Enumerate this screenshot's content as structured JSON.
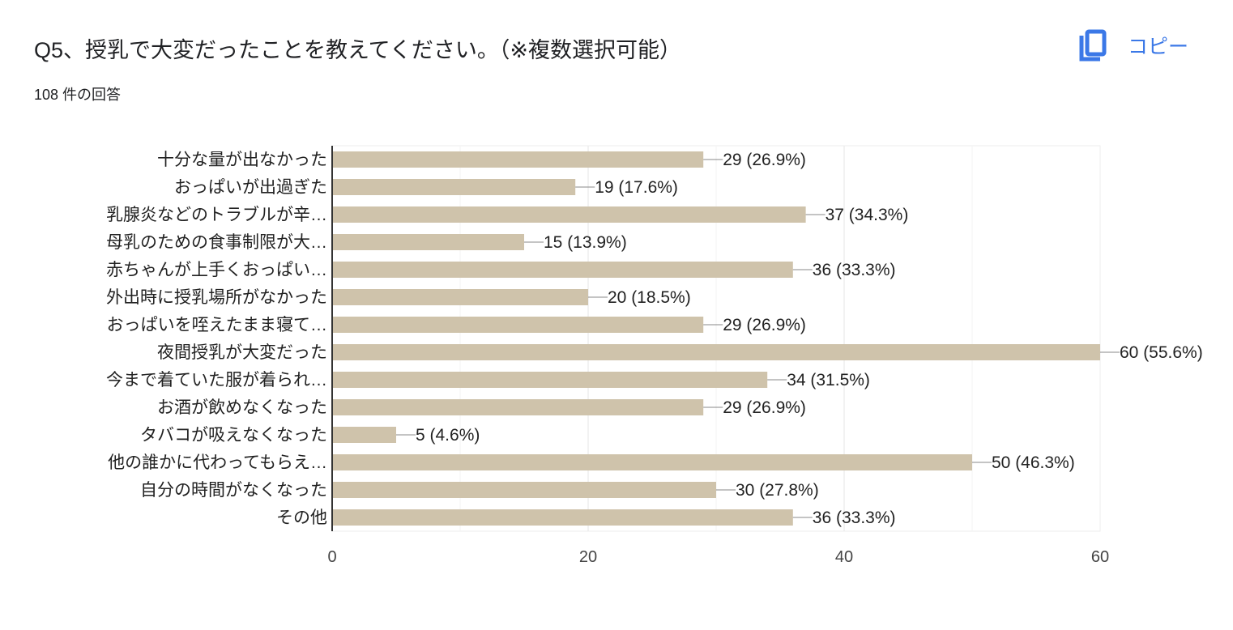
{
  "header": {
    "title": "Q5、授乳で大変だったことを教えてください。（※複数選択可能）",
    "response_count": "108 件の回答",
    "copy_label": "コピー"
  },
  "colors": {
    "bar": "#cfc3ab",
    "accent": "#3b78e7"
  },
  "chart_data": {
    "type": "bar",
    "orientation": "horizontal",
    "categories": [
      "十分な量が出なかった",
      "おっぱいが出過ぎた",
      "乳腺炎などのトラブルが辛…",
      "母乳のための食事制限が大…",
      "赤ちゃんが上手くおっぱい…",
      "外出時に授乳場所がなかった",
      "おっぱいを咥えたまま寝て…",
      "夜間授乳が大変だった",
      "今まで着ていた服が着られ…",
      "お酒が飲めなくなった",
      "タバコが吸えなくなった",
      "他の誰かに代わってもらえ…",
      "自分の時間がなくなった",
      "その他"
    ],
    "values": [
      29,
      19,
      37,
      15,
      36,
      20,
      29,
      60,
      34,
      29,
      5,
      50,
      30,
      36
    ],
    "labels": [
      "29 (26.9%)",
      "19 (17.6%)",
      "37 (34.3%)",
      "15 (13.9%)",
      "36 (33.3%)",
      "20 (18.5%)",
      "29 (26.9%)",
      "60 (55.6%)",
      "34 (31.5%)",
      "29 (26.9%)",
      "5 (4.6%)",
      "50 (46.3%)",
      "30 (27.8%)",
      "36 (33.3%)"
    ],
    "xlim": [
      0,
      60
    ],
    "xticks": [
      0,
      20,
      40,
      60
    ],
    "xticks_labels": [
      "0",
      "20",
      "40",
      "60"
    ],
    "grid": true
  }
}
